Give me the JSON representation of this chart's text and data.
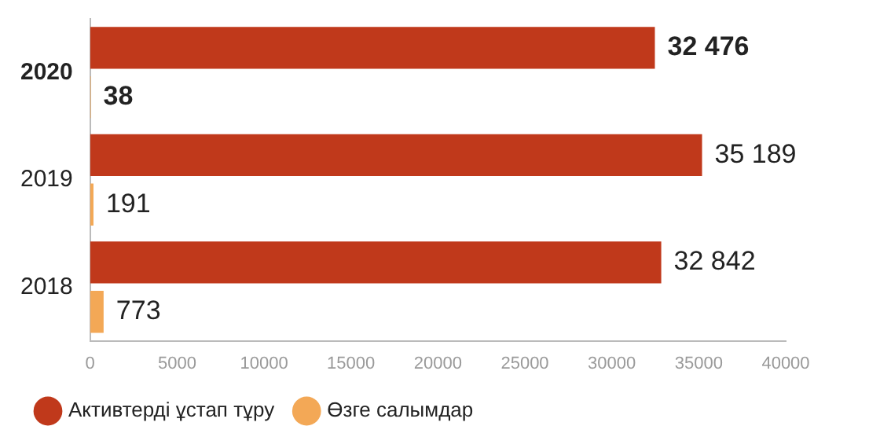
{
  "chart_data": {
    "type": "bar",
    "orientation": "horizontal",
    "categories": [
      "2020",
      "2019",
      "2018"
    ],
    "series": [
      {
        "name": "Активтерді ұстап тұру",
        "color": "#c0391b",
        "values": [
          32476,
          35189,
          32842
        ],
        "value_labels": [
          "32 476",
          "35 189",
          "32 842"
        ]
      },
      {
        "name": "Өзге салымдар",
        "color": "#f3a856",
        "values": [
          38,
          191,
          773
        ],
        "value_labels": [
          "38",
          "191",
          "773"
        ]
      }
    ],
    "xlim": [
      0,
      40000
    ],
    "xticks": [
      0,
      5000,
      10000,
      15000,
      20000,
      25000,
      30000,
      35000,
      40000
    ],
    "grid": false,
    "legend": "bottom"
  }
}
